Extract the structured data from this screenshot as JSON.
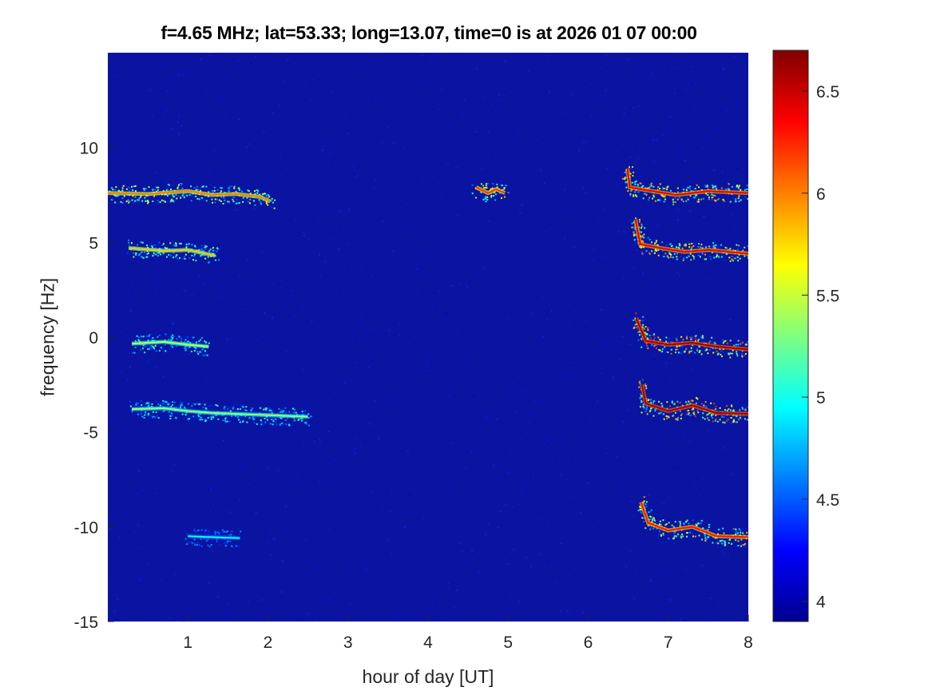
{
  "chart_data": {
    "type": "heatmap",
    "title": "f=4.65 MHz;  lat=53.33; long=13.07, time=0 is at 2026 01 07 00:00",
    "xlabel": "hour of day [UT]",
    "ylabel": "frequency [Hz]",
    "xlim": [
      0,
      8
    ],
    "ylim": [
      -15,
      15
    ],
    "xticks": [
      1,
      2,
      3,
      4,
      5,
      6,
      7,
      8
    ],
    "yticks": [
      -15,
      -10,
      -5,
      0,
      5,
      10
    ],
    "colormap": "jet",
    "background_color": "#0a14a0",
    "colorbar": {
      "clim": [
        3.9,
        6.7
      ],
      "ticks": [
        4,
        4.5,
        5,
        5.5,
        6,
        6.5
      ],
      "location": "right"
    },
    "traces": [
      {
        "points": [
          [
            0.0,
            7.6
          ],
          [
            0.5,
            7.55
          ],
          [
            1.0,
            7.7
          ],
          [
            1.3,
            7.5
          ],
          [
            1.6,
            7.55
          ],
          [
            1.9,
            7.4
          ],
          [
            2.03,
            7.15
          ]
        ],
        "intensity": 6.0
      },
      {
        "points": [
          [
            0.26,
            4.7
          ],
          [
            0.7,
            4.55
          ],
          [
            1.0,
            4.6
          ],
          [
            1.34,
            4.3
          ]
        ],
        "intensity": 5.8
      },
      {
        "points": [
          [
            0.3,
            -0.35
          ],
          [
            0.7,
            -0.25
          ],
          [
            1.0,
            -0.4
          ],
          [
            1.26,
            -0.5
          ]
        ],
        "intensity": 5.5
      },
      {
        "points": [
          [
            0.3,
            -3.8
          ],
          [
            0.7,
            -3.75
          ],
          [
            1.0,
            -3.9
          ],
          [
            1.3,
            -4.0
          ],
          [
            2.5,
            -4.2
          ]
        ],
        "intensity": 5.4
      },
      {
        "points": [
          [
            1.0,
            -10.5
          ],
          [
            1.3,
            -10.55
          ],
          [
            1.65,
            -10.6
          ]
        ],
        "intensity": 5.0
      },
      {
        "points": [
          [
            4.6,
            7.9
          ],
          [
            4.75,
            7.6
          ],
          [
            4.85,
            7.8
          ],
          [
            4.96,
            7.6
          ]
        ],
        "intensity": 6.2
      },
      {
        "points": [
          [
            6.49,
            8.9
          ],
          [
            6.52,
            7.9
          ],
          [
            6.8,
            7.7
          ],
          [
            7.1,
            7.5
          ],
          [
            7.5,
            7.7
          ],
          [
            8.0,
            7.6
          ]
        ],
        "intensity": 6.4
      },
      {
        "points": [
          [
            6.59,
            6.2
          ],
          [
            6.65,
            4.9
          ],
          [
            6.9,
            4.7
          ],
          [
            7.2,
            4.5
          ],
          [
            7.5,
            4.6
          ],
          [
            8.0,
            4.4
          ]
        ],
        "intensity": 6.4
      },
      {
        "points": [
          [
            6.6,
            1.0
          ],
          [
            6.72,
            -0.2
          ],
          [
            7.0,
            -0.4
          ],
          [
            7.3,
            -0.3
          ],
          [
            7.6,
            -0.5
          ],
          [
            8.0,
            -0.65
          ]
        ],
        "intensity": 6.6
      },
      {
        "points": [
          [
            6.67,
            -2.5
          ],
          [
            6.72,
            -3.5
          ],
          [
            7.0,
            -3.9
          ],
          [
            7.3,
            -3.6
          ],
          [
            7.6,
            -4.0
          ],
          [
            8.0,
            -4.05
          ]
        ],
        "intensity": 6.6
      },
      {
        "points": [
          [
            6.66,
            -8.7
          ],
          [
            6.75,
            -9.8
          ],
          [
            7.0,
            -10.2
          ],
          [
            7.3,
            -10.0
          ],
          [
            7.6,
            -10.5
          ],
          [
            8.0,
            -10.55
          ]
        ],
        "intensity": 6.3
      }
    ]
  }
}
